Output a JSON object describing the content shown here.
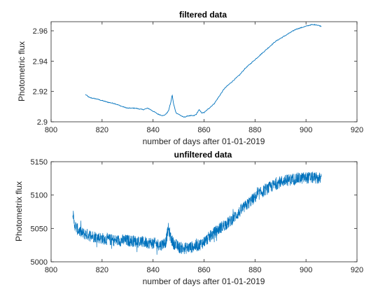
{
  "chart_data": [
    {
      "type": "line",
      "title": "filtered data",
      "xlabel": "number of days after 01-01-2019",
      "ylabel": "Photometric flux",
      "xlim": [
        800,
        920
      ],
      "ylim": [
        2.9,
        2.966
      ],
      "xticks": [
        800,
        820,
        840,
        860,
        880,
        900,
        920
      ],
      "yticks": [
        2.9,
        2.92,
        2.94,
        2.96
      ],
      "xtick_labels": [
        "800",
        "820",
        "840",
        "860",
        "880",
        "900",
        "920"
      ],
      "ytick_labels": [
        "2.9",
        "2.92",
        "2.94",
        "2.96"
      ],
      "grid": false,
      "color": "#0072BD",
      "series": [
        {
          "x": [
            813.5,
            815,
            818,
            820,
            822,
            825,
            828,
            830,
            833,
            836,
            838,
            840,
            842,
            844,
            845,
            846,
            847,
            847.5,
            848,
            849,
            850,
            852,
            854,
            856,
            857,
            858,
            859,
            860,
            862,
            864,
            866,
            868,
            870,
            872,
            874,
            876,
            878,
            880,
            882,
            884,
            886,
            888,
            890,
            892,
            894,
            896,
            898,
            900,
            902,
            904,
            906
          ],
          "y": [
            2.918,
            2.916,
            2.915,
            2.914,
            2.913,
            2.912,
            2.91,
            2.909,
            2.909,
            2.908,
            2.909,
            2.907,
            2.905,
            2.904,
            2.905,
            2.907,
            2.913,
            2.918,
            2.912,
            2.906,
            2.905,
            2.903,
            2.904,
            2.904,
            2.905,
            2.908,
            2.906,
            2.906,
            2.909,
            2.912,
            2.917,
            2.922,
            2.925,
            2.928,
            2.931,
            2.935,
            2.938,
            2.941,
            2.944,
            2.947,
            2.95,
            2.953,
            2.955,
            2.957,
            2.959,
            2.961,
            2.962,
            2.963,
            2.964,
            2.964,
            2.963
          ]
        }
      ]
    },
    {
      "type": "line",
      "title": "unfiltered data",
      "xlabel": "number of days after 01-01-2019",
      "ylabel": "Photometrix flux",
      "xlim": [
        800,
        920
      ],
      "ylim": [
        5000,
        5150
      ],
      "xticks": [
        800,
        820,
        840,
        860,
        880,
        900,
        920
      ],
      "yticks": [
        5000,
        5050,
        5100,
        5150
      ],
      "xtick_labels": [
        "800",
        "820",
        "840",
        "860",
        "880",
        "900",
        "920"
      ],
      "ytick_labels": [
        "5000",
        "5050",
        "5100",
        "5150"
      ],
      "grid": false,
      "color": "#0072BD",
      "series": [
        {
          "x": [
            808.5,
            809,
            810,
            812,
            815,
            820,
            825,
            830,
            835,
            840,
            843,
            845,
            846,
            847,
            848,
            850,
            852,
            855,
            858,
            860,
            863,
            866,
            870,
            874,
            878,
            882,
            886,
            890,
            895,
            900,
            903,
            906
          ],
          "y": [
            5075,
            5058,
            5050,
            5043,
            5040,
            5035,
            5032,
            5032,
            5030,
            5028,
            5025,
            5030,
            5050,
            5035,
            5028,
            5022,
            5020,
            5022,
            5025,
            5030,
            5040,
            5050,
            5060,
            5075,
            5090,
            5103,
            5112,
            5120,
            5124,
            5126,
            5126,
            5124
          ],
          "noise": 9
        }
      ]
    }
  ]
}
